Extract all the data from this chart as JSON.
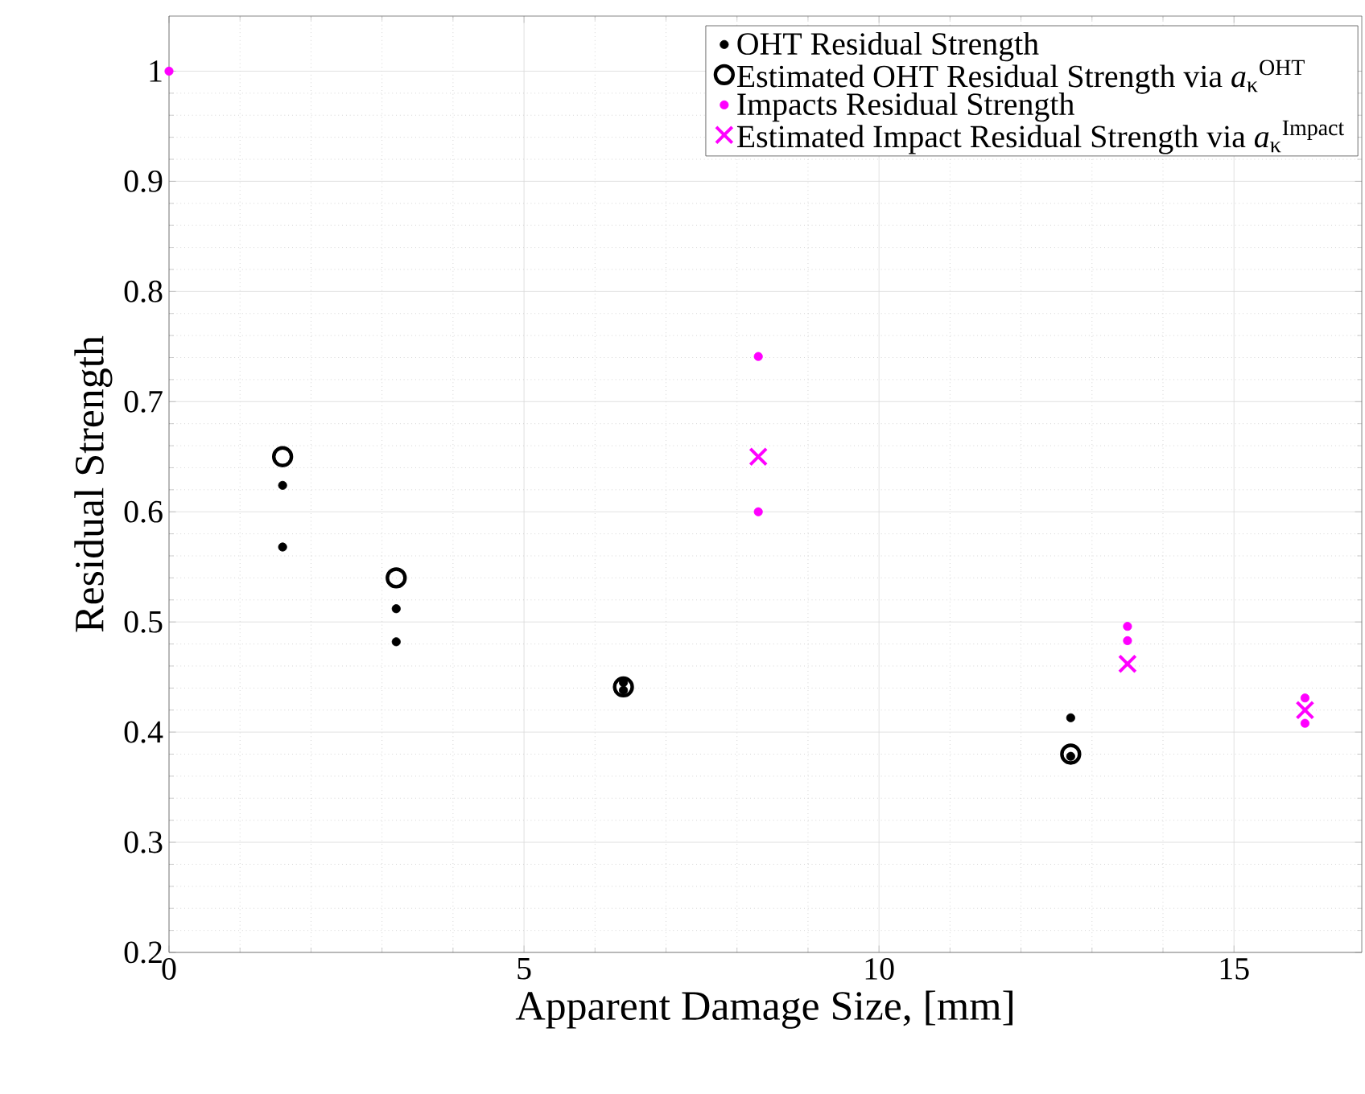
{
  "chart_data": {
    "type": "scatter",
    "xlabel": "Apparent Damage Size, [mm]",
    "ylabel": "Residual Strength",
    "xlim": [
      0,
      16.8
    ],
    "ylim": [
      0.2,
      1.05
    ],
    "xticks": [
      0,
      5,
      10,
      15
    ],
    "yticks": [
      0.2,
      0.3,
      0.4,
      0.5,
      0.6,
      0.7,
      0.8,
      0.9,
      1
    ],
    "grid": true,
    "legend": "top right",
    "series": [
      {
        "name": "OHT Residual Strength",
        "color": "#000000",
        "marker": "circle",
        "x": [
          1.6,
          1.6,
          3.2,
          3.2,
          6.4,
          6.4,
          12.7,
          12.7
        ],
        "values": [
          0.624,
          0.568,
          0.512,
          0.482,
          0.445,
          0.438,
          0.413,
          0.378
        ]
      },
      {
        "name": "Estimated OHT Residual Strength via *a*$_{κ}$$^{OHT}$",
        "color": "#000000",
        "marker": "circle",
        "x": [
          1.6,
          3.2,
          6.4,
          12.7
        ],
        "values": [
          0.65,
          0.54,
          0.441,
          0.38
        ]
      },
      {
        "name": "Impacts Residual Strength",
        "color": "#ff00ff",
        "marker": "circle",
        "x": [
          0,
          8.3,
          8.3,
          13.5,
          13.5,
          16,
          16
        ],
        "values": [
          1,
          0.741,
          0.6,
          0.496,
          0.483,
          0.431,
          0.408
        ]
      },
      {
        "name": "Estimated Impact Residual Strength via *a*$_{κ}$$^{Impact}$",
        "color": "#ff00ff",
        "marker": "cross",
        "x": [
          8.3,
          13.5,
          16
        ],
        "values": [
          0.65,
          0.462,
          0.42
        ]
      }
    ]
  }
}
